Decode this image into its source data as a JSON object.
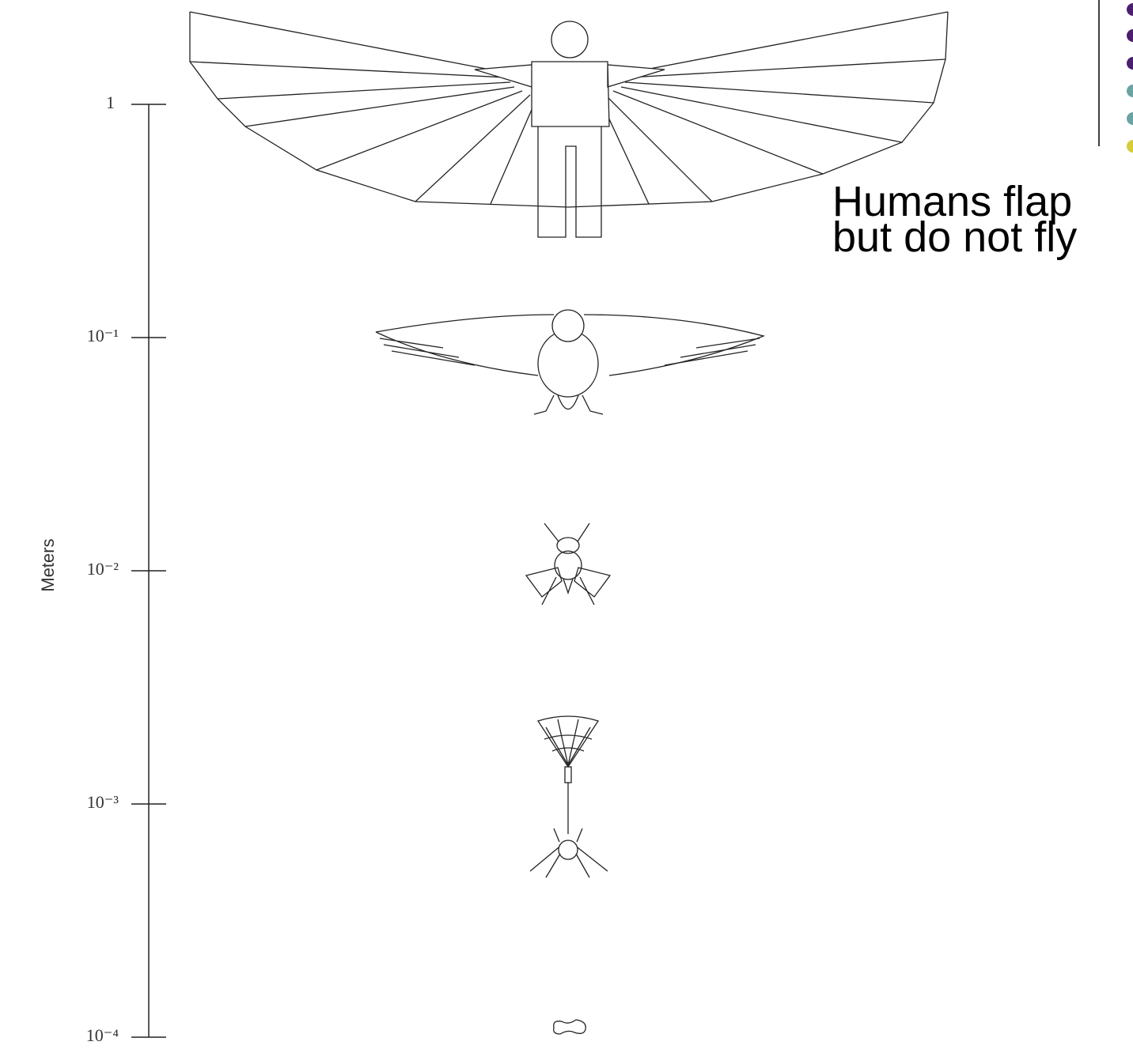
{
  "axis": {
    "label": "Meters",
    "ticks": [
      "1",
      "10⁻¹",
      "10⁻²",
      "10⁻³",
      "10⁻⁴"
    ]
  },
  "caption": {
    "lines": [
      "Humans flap",
      "but do not fly"
    ]
  }
}
